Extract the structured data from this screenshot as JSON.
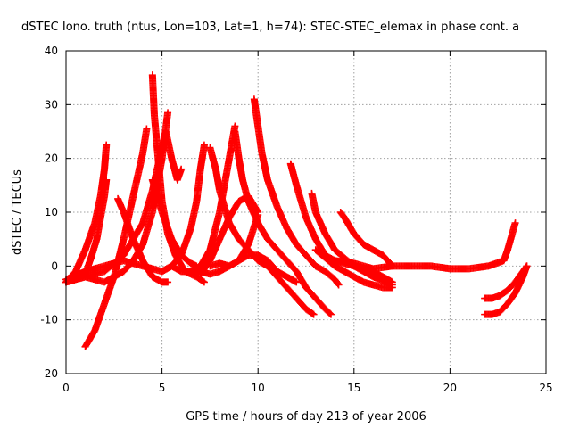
{
  "chart_data": {
    "type": "scatter",
    "title": "dSTEC Iono. truth (ntus, Lon=103, Lat=1, h=74): STEC-STEC_elemax in phase cont. a",
    "xlabel": "GPS time / hours of day 213 of year 2006",
    "ylabel": "dSTEC  / TECUs",
    "xlim": [
      0,
      25
    ],
    "ylim": [
      -20,
      40
    ],
    "x_ticks": [
      "0",
      "5",
      "10",
      "15",
      "20",
      "25"
    ],
    "y_ticks": [
      "-20",
      "-10",
      "0",
      "10",
      "20",
      "30",
      "40"
    ],
    "grid": true,
    "legend": "none",
    "marker": "+",
    "color": "#ff0000",
    "series": [
      {
        "x": [
          0.0,
          0.5,
          1.0,
          1.5,
          1.8,
          2.0,
          2.1
        ],
        "y": [
          -3,
          -1,
          3,
          8,
          13,
          18,
          22.5
        ]
      },
      {
        "x": [
          1.0,
          1.3,
          1.6,
          1.8,
          2.0,
          2.1
        ],
        "y": [
          -1.5,
          1.5,
          5,
          9,
          13,
          16
        ]
      },
      {
        "x": [
          1.0,
          1.5,
          2.0,
          2.5,
          3.0,
          3.5,
          4.0,
          4.2
        ],
        "y": [
          -15,
          -12,
          -7,
          -2,
          5,
          13,
          21,
          25.5
        ]
      },
      {
        "x": [
          0.0,
          0.5,
          1.0,
          1.5,
          2.0,
          2.5,
          3.0,
          3.5,
          4.0,
          4.5,
          5.0,
          5.3
        ],
        "y": [
          -3,
          -2.5,
          -2,
          -2.5,
          -3,
          -2,
          -1,
          1,
          4,
          10,
          20,
          28.5
        ]
      },
      {
        "x": [
          4.5,
          4.6,
          4.8,
          5.0,
          5.3,
          5.7,
          6.2,
          6.8,
          7.2
        ],
        "y": [
          35.5,
          28,
          20,
          12,
          6,
          2,
          -1,
          -2,
          -3
        ]
      },
      {
        "x": [
          0.0,
          1.0,
          2.0,
          3.0,
          4.0,
          4.5,
          5.0,
          5.2,
          5.5,
          5.8,
          6.0
        ],
        "y": [
          -3,
          -2,
          -1,
          2,
          8,
          14,
          22,
          25,
          20,
          16,
          18
        ]
      },
      {
        "x": [
          2.7,
          3.0,
          3.5,
          4.0,
          4.5,
          5.0,
          5.3
        ],
        "y": [
          12.5,
          10,
          5,
          1,
          -2,
          -3,
          -3
        ]
      },
      {
        "x": [
          0.0,
          1.0,
          2.0,
          3.0,
          4.0,
          5.0,
          5.5,
          6.0,
          6.5,
          6.8,
          7.0,
          7.2
        ],
        "y": [
          -2.5,
          -1,
          0,
          1,
          0,
          -1,
          0,
          2,
          7,
          12,
          18,
          22.5
        ]
      },
      {
        "x": [
          4.5,
          5.0,
          5.5,
          6.0,
          6.5,
          6.8
        ],
        "y": [
          16,
          10,
          5,
          2,
          0.5,
          0
        ]
      },
      {
        "x": [
          5.0,
          5.5,
          6.0,
          6.5,
          7.0,
          7.5,
          8.0,
          8.5,
          8.8
        ],
        "y": [
          -1,
          0,
          -1,
          -1,
          0,
          3,
          10,
          20,
          26
        ]
      },
      {
        "x": [
          7.5,
          7.8,
          8.0,
          8.5,
          9.0,
          9.5,
          10.0,
          10.5,
          11.0,
          11.5,
          12.0,
          12.5,
          12.9
        ],
        "y": [
          22,
          18,
          14,
          8,
          5,
          3,
          1,
          0,
          -2,
          -4,
          -6,
          -8,
          -9
        ]
      },
      {
        "x": [
          8.8,
          9.0,
          9.2,
          9.5,
          10.0,
          10.5,
          11.0,
          11.5,
          12.0,
          12.5,
          13.0,
          13.5,
          13.8
        ],
        "y": [
          25,
          20,
          16,
          12,
          8,
          5,
          3,
          1,
          -1,
          -4,
          -6,
          -8,
          -9
        ]
      },
      {
        "x": [
          9.8,
          10.0,
          10.2,
          10.5,
          11.0,
          11.5,
          12.0,
          12.5,
          13.0,
          13.5,
          14.0,
          14.2
        ],
        "y": [
          31,
          26,
          21,
          16,
          11,
          7,
          4,
          2,
          0,
          -1,
          -2.5,
          -3.5
        ]
      },
      {
        "x": [
          6.5,
          7.0,
          7.5,
          8.0,
          8.5,
          9.0,
          9.5,
          10.0
        ],
        "y": [
          -1,
          -1.5,
          1,
          5,
          9,
          12,
          13,
          10
        ]
      },
      {
        "x": [
          7.0,
          7.5,
          8.0,
          8.5,
          9.0,
          9.5,
          10.0,
          10.5,
          11.0,
          11.5,
          12.0
        ],
        "y": [
          -1,
          -1.5,
          -1,
          0,
          1,
          2,
          2,
          1,
          -1,
          -2,
          -3
        ]
      },
      {
        "x": [
          7.5,
          8.0,
          8.5,
          9.0,
          9.5,
          10.0
        ],
        "y": [
          0,
          0.5,
          0,
          1,
          4,
          9.5
        ]
      },
      {
        "x": [
          11.7,
          12.0,
          12.5,
          13.0,
          13.5,
          14.0,
          15.0,
          16.0,
          17.0
        ],
        "y": [
          19,
          15,
          9,
          5,
          2,
          1,
          0,
          -1,
          -3
        ]
      },
      {
        "x": [
          12.8,
          13.0,
          13.5,
          14.0,
          15.0,
          16.0,
          17.0
        ],
        "y": [
          13.5,
          10,
          6,
          3,
          0,
          -2,
          -3.5
        ]
      },
      {
        "x": [
          13.0,
          14.0,
          15.0,
          15.5,
          16.0,
          16.5,
          17.0
        ],
        "y": [
          3,
          0,
          -2,
          -3,
          -3.5,
          -4,
          -4
        ]
      },
      {
        "x": [
          14.3,
          14.5,
          15.0,
          15.5,
          16.0,
          16.5,
          17.0
        ],
        "y": [
          10,
          9,
          6,
          4,
          3,
          2,
          0
        ]
      },
      {
        "x": [
          14.0,
          15.0,
          16.0,
          17.0,
          18.0,
          19.0,
          20.0,
          21.0,
          22.0,
          22.8,
          23.0,
          23.2,
          23.4
        ],
        "y": [
          1,
          0.5,
          -0.5,
          0,
          0,
          0,
          -0.5,
          -0.5,
          0,
          1,
          3,
          5.5,
          8
        ]
      },
      {
        "x": [
          21.8,
          22.2,
          22.6,
          23.0,
          23.4,
          23.8,
          24.0
        ],
        "y": [
          -6,
          -6,
          -5.5,
          -4.5,
          -3,
          -1,
          0
        ]
      },
      {
        "x": [
          21.8,
          22.2,
          22.6,
          23.0,
          23.4,
          23.8,
          24.0
        ],
        "y": [
          -9,
          -9,
          -8.5,
          -7,
          -5,
          -2,
          0
        ]
      }
    ]
  }
}
